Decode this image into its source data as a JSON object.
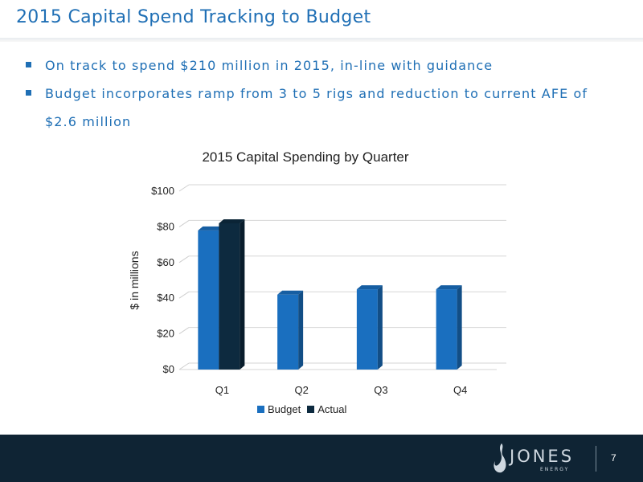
{
  "slide": {
    "title": "2015 Capital Spend Tracking to Budget",
    "bullets": [
      "On track to spend $210 million in 2015, in-line with guidance",
      "Budget incorporates ramp from 3 to 5 rigs and reduction to current AFE of $2.6 million"
    ],
    "page_number": "7"
  },
  "logo": {
    "name": "JONES",
    "sub": "ENERGY"
  },
  "colors": {
    "budget": "#1a6fbf",
    "actual": "#0d2a3f",
    "title": "#1f6fb5",
    "footer": "#0f2434"
  },
  "chart_data": {
    "type": "bar",
    "title": "2015 Capital Spending by Quarter",
    "xlabel": "",
    "ylabel": "$ in millions",
    "categories": [
      "Q1",
      "Q2",
      "Q3",
      "Q4"
    ],
    "series": [
      {
        "name": "Budget",
        "values": [
          78,
          42,
          45,
          45
        ],
        "color": "#1a6fbf"
      },
      {
        "name": "Actual",
        "values": [
          82,
          null,
          null,
          null
        ],
        "color": "#0d2a3f"
      }
    ],
    "ylim": [
      0,
      100
    ],
    "yticks": [
      "$0",
      "$20",
      "$40",
      "$60",
      "$80",
      "$100"
    ],
    "grid": true,
    "legend": "bottom"
  }
}
